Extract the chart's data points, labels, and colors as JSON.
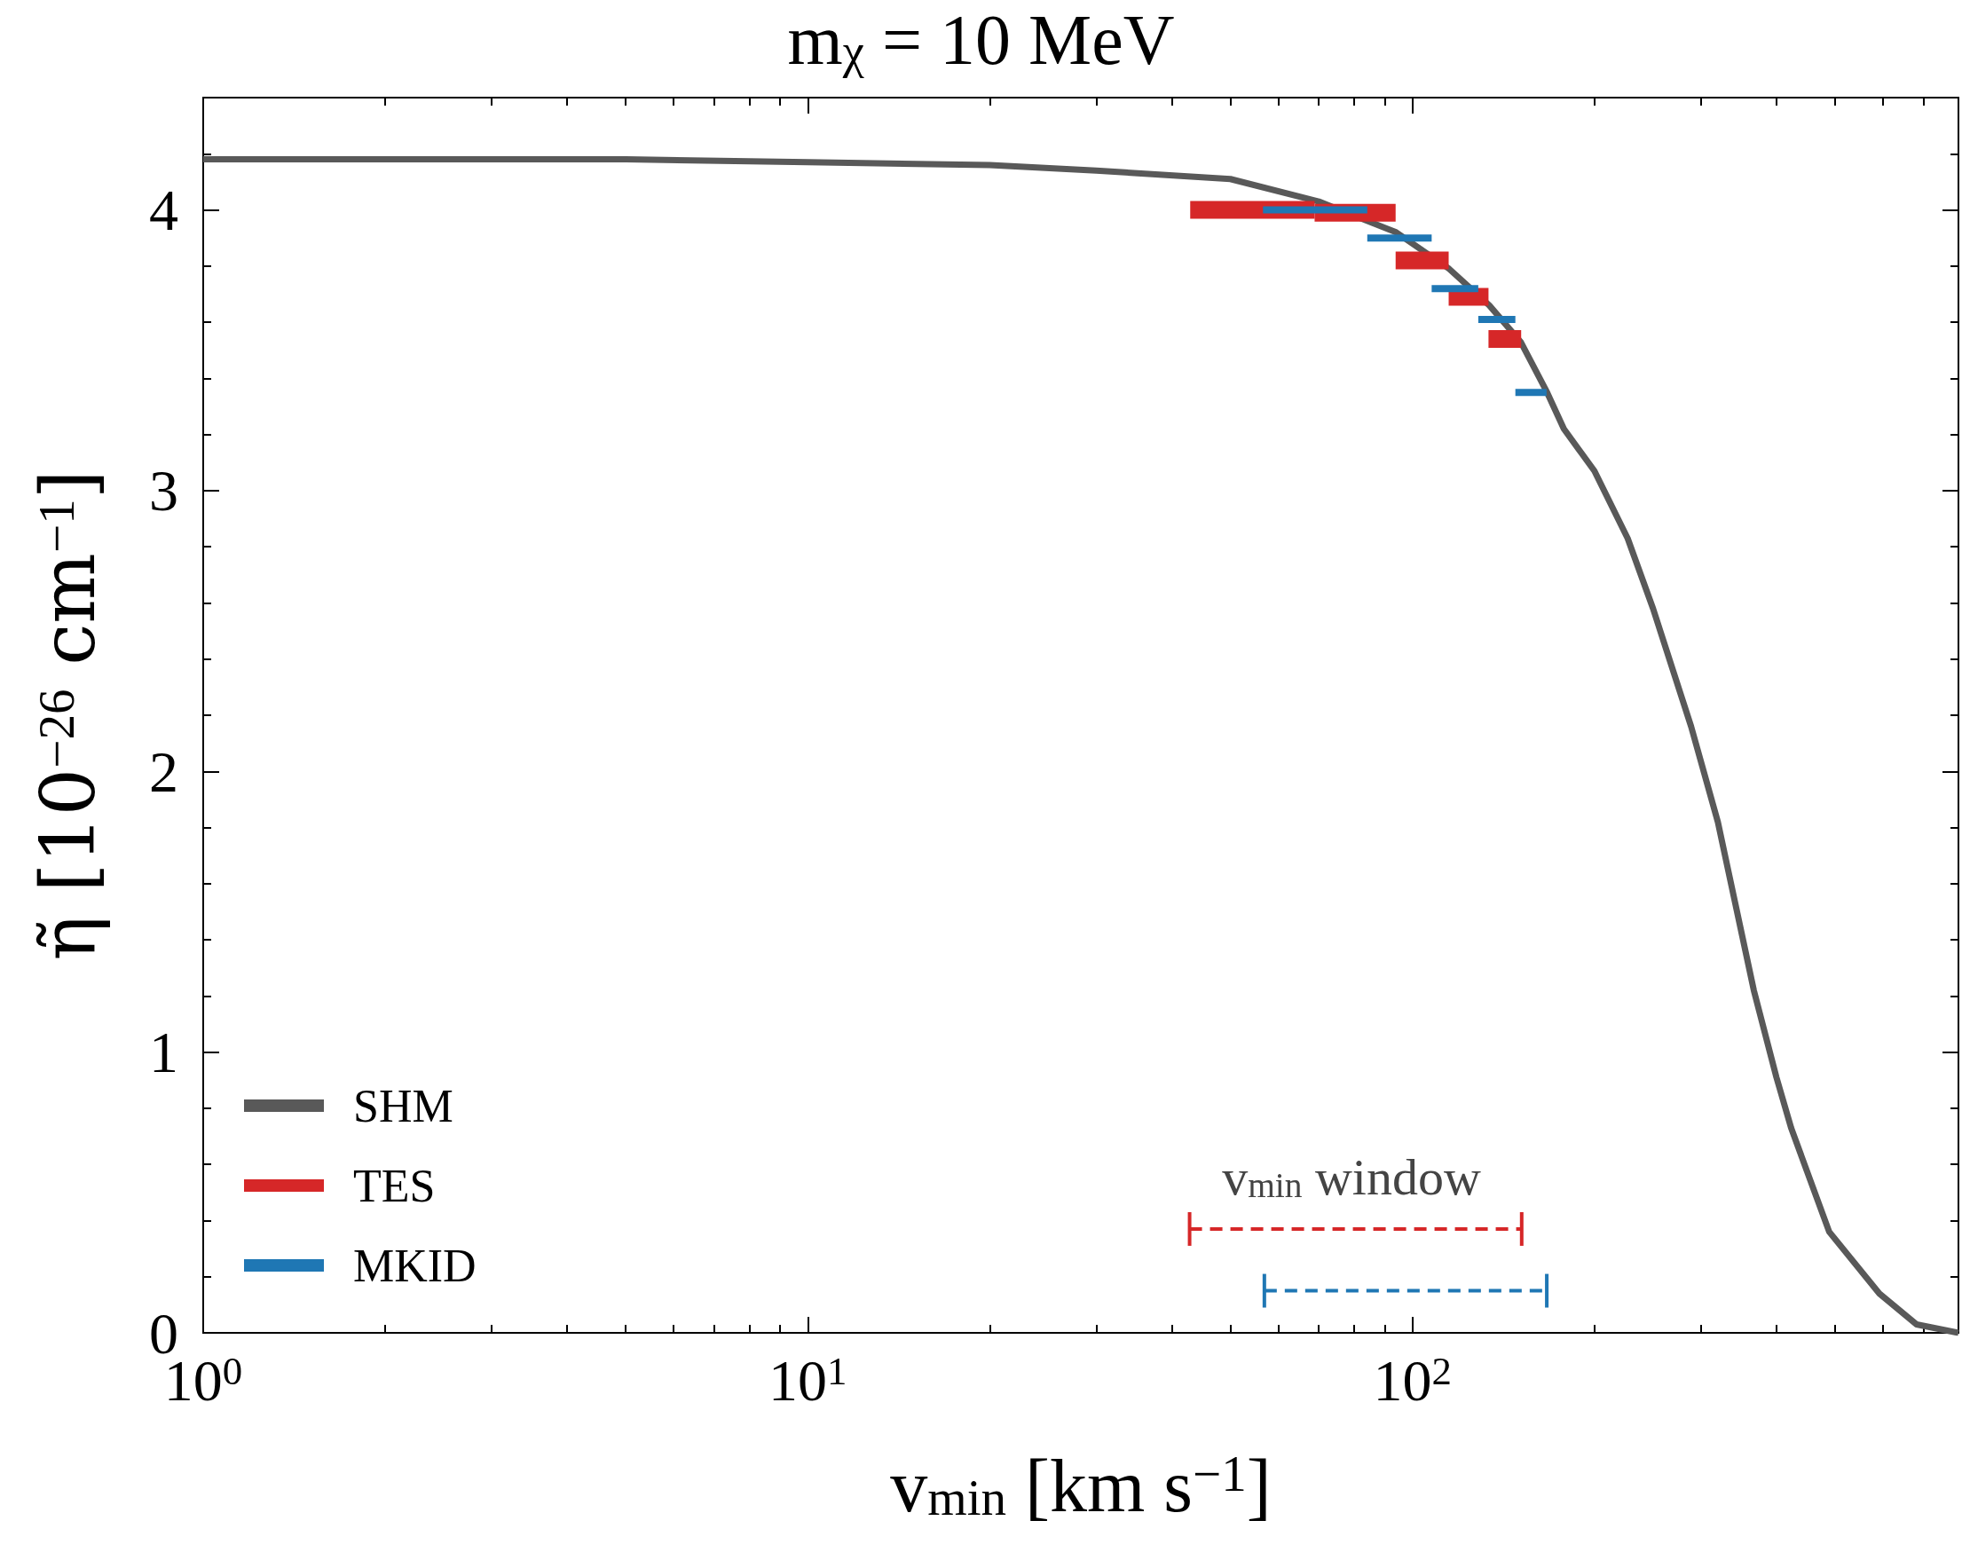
{
  "chart_data": {
    "type": "line",
    "title": "m$_{χ}$ = 10 MeV",
    "xlabel": "v$_{min}$ [km s$^{−1}$]",
    "ylabel": "η̃ [10$^{−26}$ cm$^{−1}$]",
    "log": "x",
    "xlim": [
      1,
      800
    ],
    "xticks": [
      {
        "value": 1,
        "label": "10$^{0}$"
      },
      {
        "value": 10,
        "label": "10$^{1}$"
      },
      {
        "value": 100,
        "label": "10$^{2}$"
      }
    ],
    "ylim": [
      0,
      4.4
    ],
    "yticks": [
      0,
      1,
      2,
      3,
      4
    ],
    "grid": false,
    "legend": "bottom left",
    "marker": "none",
    "annotations": [
      "v$_{min}$ window"
    ],
    "series": [
      {
        "name": "SHM",
        "color": "#595959",
        "x": [
          1,
          2,
          5,
          10,
          20,
          30,
          50,
          70,
          94,
          115,
          134,
          151,
          167,
          178,
          200,
          227,
          250,
          289,
          320,
          367,
          400,
          423,
          489,
          592,
          682,
          800
        ],
        "values": [
          4.18,
          4.18,
          4.18,
          4.17,
          4.16,
          4.14,
          4.11,
          4.03,
          3.92,
          3.79,
          3.66,
          3.53,
          3.35,
          3.22,
          3.07,
          2.83,
          2.58,
          2.16,
          1.82,
          1.22,
          0.91,
          0.73,
          0.36,
          0.14,
          0.03,
          0.0
        ]
      },
      {
        "name": "TES",
        "color": "#d62728",
        "x": [
          42.9,
          68.9
        ],
        "values": [
          4.0,
          4.0
        ]
      },
      {
        "color": "#d62728",
        "x": [
          68.9,
          93.8
        ],
        "values": [
          3.99,
          3.99
        ]
      },
      {
        "color": "#d62728",
        "x": [
          93.8,
          114.8
        ],
        "values": [
          3.82,
          3.82
        ]
      },
      {
        "color": "#d62728",
        "x": [
          114.8,
          133.6
        ],
        "values": [
          3.69,
          3.69
        ]
      },
      {
        "color": "#d62728",
        "x": [
          133.6,
          151.3
        ],
        "values": [
          3.54,
          3.54
        ]
      },
      {
        "name": "MKID",
        "color": "#1f77b4",
        "x": [
          56.6,
          84.2
        ],
        "values": [
          4.0,
          4.0
        ]
      },
      {
        "color": "#1f77b4",
        "x": [
          84.2,
          107.6
        ],
        "values": [
          3.9,
          3.9
        ]
      },
      {
        "color": "#1f77b4",
        "x": [
          107.6,
          128.5
        ],
        "values": [
          3.72,
          3.72
        ]
      },
      {
        "color": "#1f77b4",
        "x": [
          128.5,
          148
        ],
        "values": [
          3.61,
          3.61
        ]
      },
      {
        "color": "#1f77b4",
        "x": [
          148,
          166.7
        ],
        "values": [
          3.35,
          3.35
        ]
      },
      {
        "color": "#d62728",
        "line_style": "dashed",
        "x": [
          42.8,
          151.6
        ],
        "values": [
          0.37,
          0.37
        ],
        "errors": [
          0.06,
          0.06
        ]
      },
      {
        "color": "#1f77b4",
        "line_style": "dashed",
        "x": [
          56.9,
          166.8
        ],
        "values": [
          0.15,
          0.15
        ],
        "errors": [
          0.06,
          0.06
        ]
      }
    ]
  }
}
